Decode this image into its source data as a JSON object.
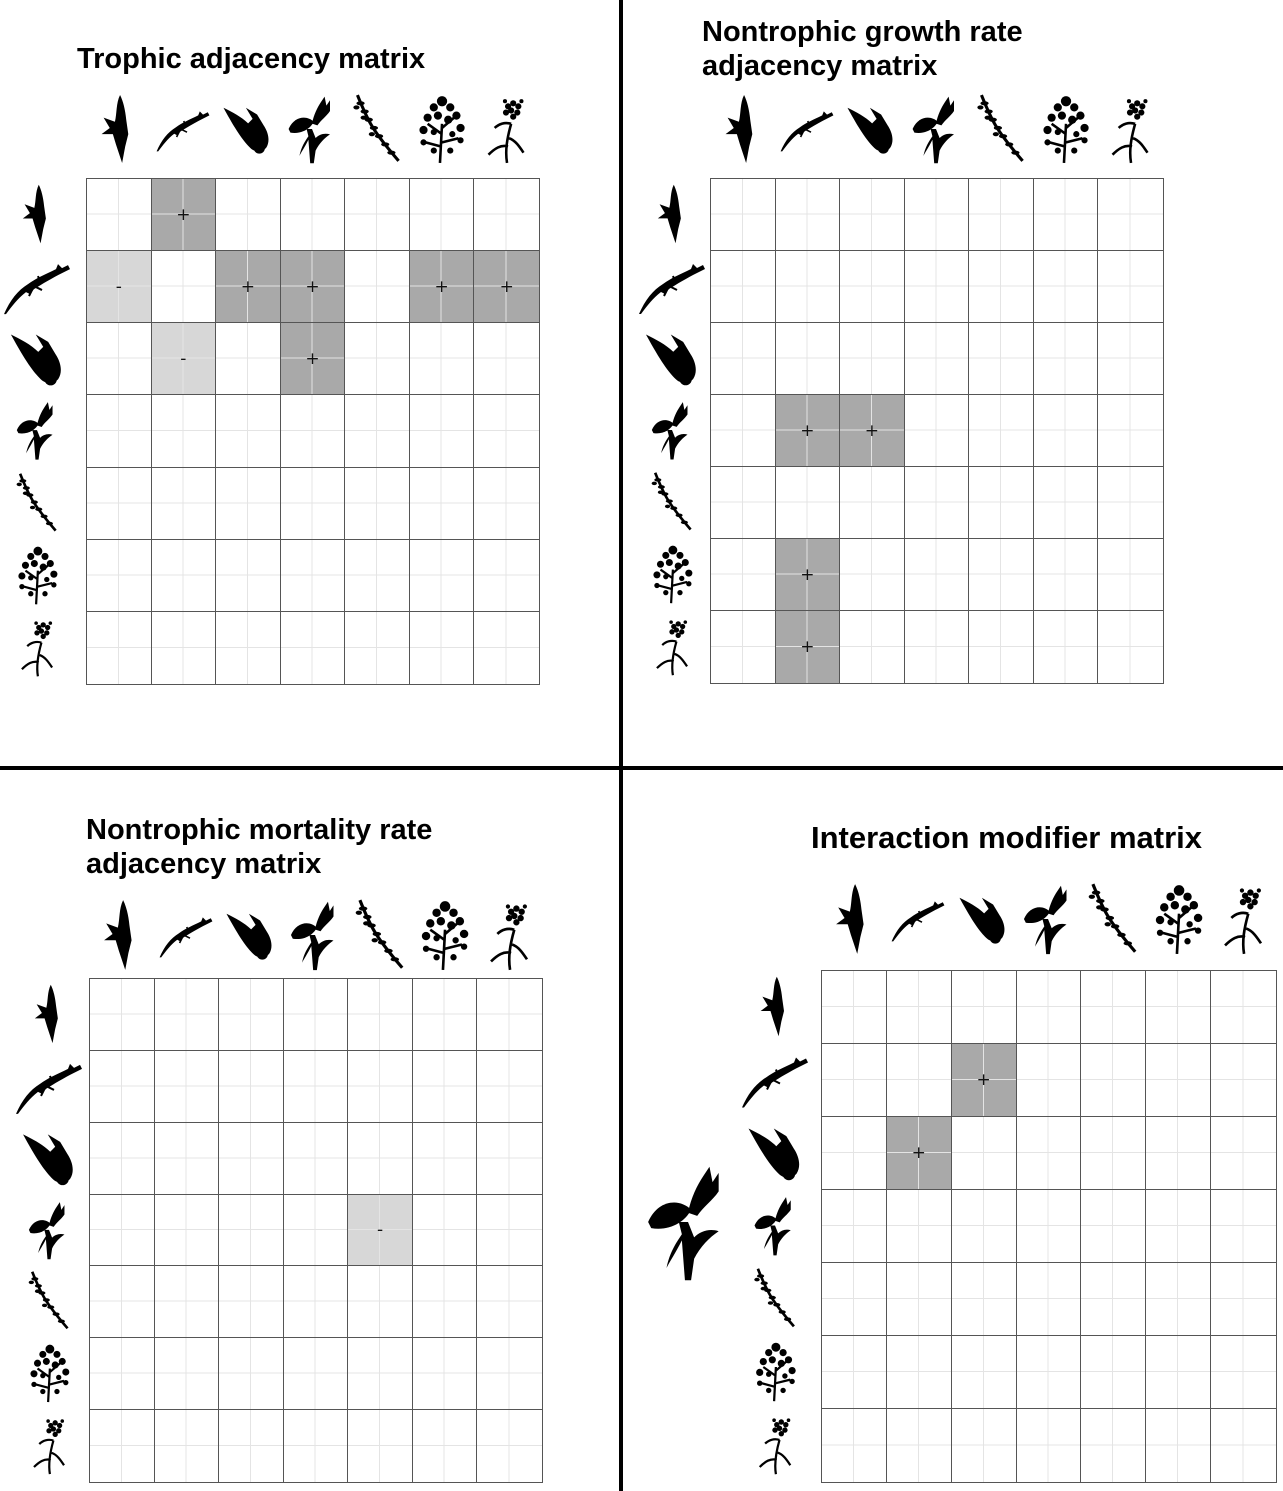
{
  "panels": [
    {
      "title_lines": [
        "Trophic adjacency matrix"
      ],
      "cells": [
        [
          "",
          "+",
          "",
          "",
          "",
          "",
          ""
        ],
        [
          "-",
          "",
          "+",
          "+",
          "",
          "+",
          "+"
        ],
        [
          "",
          "-",
          "",
          "+",
          "",
          "",
          ""
        ],
        [
          "",
          "",
          "",
          "",
          "",
          "",
          ""
        ],
        [
          "",
          "",
          "",
          "",
          "",
          "",
          ""
        ],
        [
          "",
          "",
          "",
          "",
          "",
          "",
          ""
        ],
        [
          "",
          "",
          "",
          "",
          "",
          "",
          ""
        ]
      ]
    },
    {
      "title_lines": [
        "Nontrophic growth rate",
        "adjacency matrix"
      ],
      "cells": [
        [
          "",
          "",
          "",
          "",
          "",
          "",
          ""
        ],
        [
          "",
          "",
          "",
          "",
          "",
          "",
          ""
        ],
        [
          "",
          "",
          "",
          "",
          "",
          "",
          ""
        ],
        [
          "",
          "+",
          "+",
          "",
          "",
          "",
          ""
        ],
        [
          "",
          "",
          "",
          "",
          "",
          "",
          ""
        ],
        [
          "",
          "+",
          "",
          "",
          "",
          "",
          ""
        ],
        [
          "",
          "+",
          "",
          "",
          "",
          "",
          ""
        ]
      ]
    },
    {
      "title_lines": [
        "Nontrophic mortality rate",
        "adjacency matrix"
      ],
      "cells": [
        [
          "",
          "",
          "",
          "",
          "",
          "",
          ""
        ],
        [
          "",
          "",
          "",
          "",
          "",
          "",
          ""
        ],
        [
          "",
          "",
          "",
          "",
          "",
          "",
          ""
        ],
        [
          "",
          "",
          "",
          "",
          "-",
          "",
          ""
        ],
        [
          "",
          "",
          "",
          "",
          "",
          "",
          ""
        ],
        [
          "",
          "",
          "",
          "",
          "",
          "",
          ""
        ],
        [
          "",
          "",
          "",
          "",
          "",
          "",
          ""
        ]
      ]
    },
    {
      "title_lines": [
        "Interaction modifier matrix"
      ],
      "cells": [
        [
          "",
          "",
          "",
          "",
          "",
          "",
          ""
        ],
        [
          "",
          "",
          "+",
          "",
          "",
          "",
          ""
        ],
        [
          "",
          "+",
          "",
          "",
          "",
          "",
          ""
        ],
        [
          "",
          "",
          "",
          "",
          "",
          "",
          ""
        ],
        [
          "",
          "",
          "",
          "",
          "",
          "",
          ""
        ],
        [
          "",
          "",
          "",
          "",
          "",
          "",
          ""
        ],
        [
          "",
          "",
          "",
          "",
          "",
          "",
          ""
        ]
      ],
      "modifier_icon": "flower-icon"
    }
  ],
  "species_icons": [
    "bird-icon",
    "lizard-icon",
    "fly-icon",
    "flower-icon",
    "grass-icon",
    "shrub-icon",
    "umbel-icon"
  ],
  "colors": {
    "positive": "#a9a9a9",
    "negative": "#d7d7d7",
    "grid": "#555555",
    "subgrid": "#e4e4e4"
  }
}
